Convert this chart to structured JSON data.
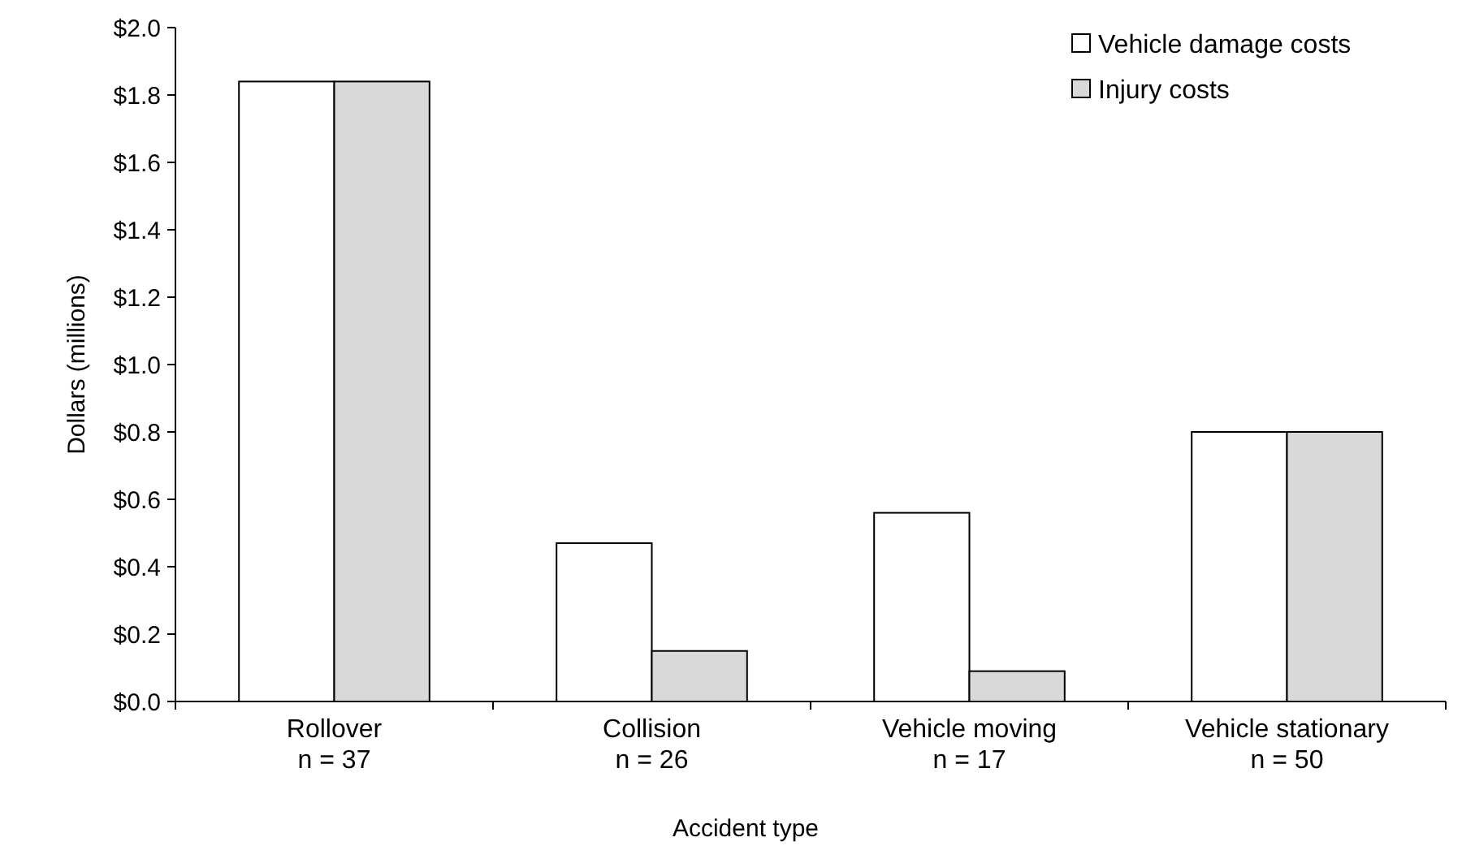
{
  "chart_data": {
    "type": "bar",
    "xlabel": "Accident type",
    "ylabel": "Dollars (millions)",
    "categories": [
      "Rollover\nn = 37",
      "Collision\nn = 26",
      "Vehicle moving\nn = 17",
      "Vehicle stationary\nn = 50"
    ],
    "series": [
      {
        "name": "Vehicle damage costs",
        "color": "#ffffff",
        "values": [
          1.84,
          0.47,
          0.56,
          0.8
        ]
      },
      {
        "name": "Injury costs",
        "color": "#d9d9d9",
        "values": [
          1.84,
          0.15,
          0.09,
          0.8
        ]
      }
    ],
    "ylim": [
      0,
      2
    ],
    "yticks": [
      {
        "value": 0,
        "label": "$0.0"
      },
      {
        "value": 0.2,
        "label": "$0.2"
      },
      {
        "value": 0.4,
        "label": "$0.4"
      },
      {
        "value": 0.6,
        "label": "$0.6"
      },
      {
        "value": 0.8,
        "label": "$0.8"
      },
      {
        "value": 1,
        "label": "$1.0"
      },
      {
        "value": 1.2,
        "label": "$1.2"
      },
      {
        "value": 1.4,
        "label": "$1.4"
      },
      {
        "value": 1.6,
        "label": "$1.6"
      },
      {
        "value": 1.8,
        "label": "$1.8"
      },
      {
        "value": 2,
        "label": "$2.0"
      }
    ],
    "grid": false,
    "legend": "top right"
  }
}
